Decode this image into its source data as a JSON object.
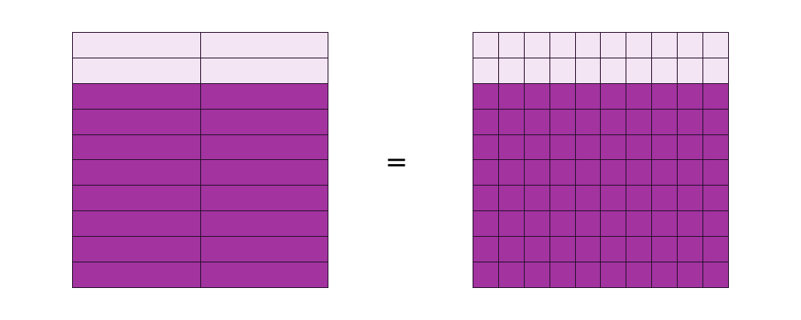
{
  "left_model": {
    "rows": 10,
    "cols": 2,
    "light_rows": 2,
    "shaded_rows": 8
  },
  "right_model": {
    "rows": 10,
    "cols": 10,
    "light_rows": 2,
    "shaded_rows": 8
  },
  "equals_sign": "=",
  "colors": {
    "shaded": "#a2339f",
    "light": "#f3e5f3",
    "border": "#2a0f2e"
  }
}
